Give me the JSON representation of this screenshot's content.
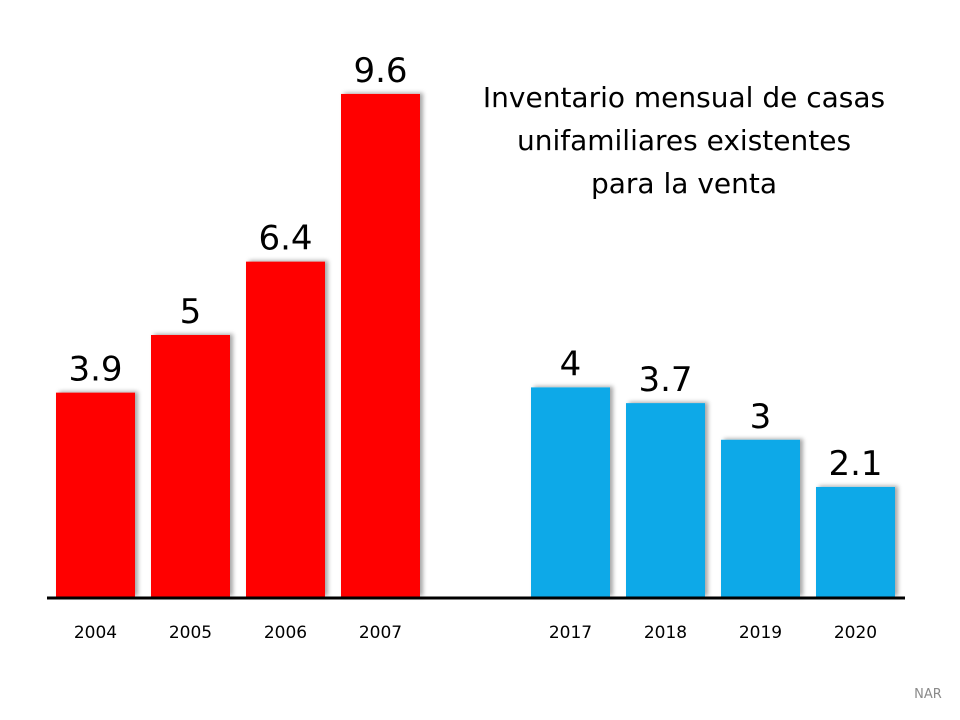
{
  "chart_data": {
    "type": "bar",
    "title_lines": [
      "Inventario mensual de casas",
      "unifamiliares existentes",
      "para la venta"
    ],
    "source": "NAR",
    "xlabel": "",
    "ylabel": "",
    "grid": false,
    "groups": [
      {
        "categories": [
          "2004",
          "2005",
          "2006",
          "2007"
        ],
        "values": [
          3.9,
          5,
          6.4,
          9.6
        ],
        "labels": [
          "3.9",
          "5",
          "6.4",
          "9.6"
        ],
        "color": "#FF0000"
      },
      {
        "categories": [
          "2017",
          "2018",
          "2019",
          "2020"
        ],
        "values": [
          4,
          3.7,
          3,
          2.1
        ],
        "labels": [
          "4",
          "3.7",
          "3",
          "2.1"
        ],
        "color": "#0EA9E8"
      }
    ]
  }
}
